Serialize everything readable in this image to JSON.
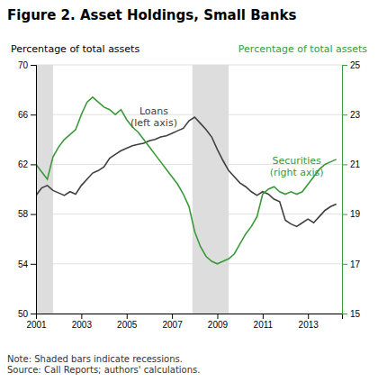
{
  "chart_data": {
    "type": "line",
    "title": "Figure 2. Asset Holdings, Small Banks",
    "ylabel": "Percentage of total assets",
    "y2label": "Percentage of total assets",
    "note": "Note: Shaded bars indicate recessions.\nSource: Call Reports; authors' calculations.",
    "annotations": [
      {
        "text": "Loans\n(left axis)",
        "x": 2006.2,
        "y": 64.8
      },
      {
        "text": "Securities\n(right axis)",
        "x": 2012.5,
        "y": 60.8
      }
    ],
    "recession_bars": [
      [
        2001.0,
        2001.75
      ],
      [
        2007.9,
        2009.5
      ]
    ],
    "xlim": [
      2001.0,
      2014.5
    ],
    "xticks": [
      2001,
      2003,
      2005,
      2007,
      2009,
      2011,
      2013
    ],
    "ylim": [
      50,
      70
    ],
    "yticks": [
      50,
      54,
      58,
      62,
      66,
      70
    ],
    "y2lim": [
      15,
      25
    ],
    "y2ticks": [
      15,
      17,
      19,
      21,
      23,
      25
    ],
    "grid": true,
    "x": [
      2001,
      2001.25,
      2001.5,
      2001.75,
      2002,
      2002.25,
      2002.5,
      2002.75,
      2003,
      2003.25,
      2003.5,
      2003.75,
      2004,
      2004.25,
      2004.5,
      2004.75,
      2005,
      2005.25,
      2005.5,
      2005.75,
      2006,
      2006.25,
      2006.5,
      2006.75,
      2007,
      2007.25,
      2007.5,
      2007.75,
      2008,
      2008.25,
      2008.5,
      2008.75,
      2009,
      2009.25,
      2009.5,
      2009.75,
      2010,
      2010.25,
      2010.5,
      2010.75,
      2011,
      2011.25,
      2011.5,
      2011.75,
      2012,
      2012.25,
      2012.5,
      2012.75,
      2013,
      2013.25,
      2013.5,
      2013.75,
      2014,
      2014.25
    ],
    "series": [
      {
        "color": "#404040",
        "values": [
          59.5,
          60.1,
          60.3,
          59.9,
          59.7,
          59.5,
          59.8,
          59.6,
          60.3,
          60.8,
          61.3,
          61.5,
          61.8,
          62.5,
          62.8,
          63.1,
          63.3,
          63.5,
          63.6,
          63.7,
          63.9,
          64.0,
          64.2,
          64.3,
          64.5,
          64.7,
          64.9,
          65.5,
          65.8,
          65.3,
          64.8,
          64.2,
          63.2,
          62.3,
          61.5,
          61.0,
          60.5,
          60.2,
          59.8,
          59.5,
          59.8,
          59.6,
          59.2,
          59.0,
          57.5,
          57.2,
          57.0,
          57.3,
          57.6,
          57.3,
          57.8,
          58.3,
          58.6,
          58.8
        ]
      },
      {
        "color": "#3a9a3a",
        "axis": "y2",
        "values": [
          21.0,
          20.7,
          20.4,
          21.3,
          21.7,
          22.0,
          22.2,
          22.4,
          23.0,
          23.5,
          23.7,
          23.5,
          23.3,
          23.2,
          23.0,
          23.2,
          22.8,
          22.5,
          22.3,
          22.0,
          21.7,
          21.4,
          21.1,
          20.8,
          20.5,
          20.2,
          19.8,
          19.3,
          18.3,
          17.7,
          17.3,
          17.1,
          17.0,
          17.1,
          17.2,
          17.4,
          17.8,
          18.2,
          18.5,
          18.9,
          19.8,
          20.0,
          20.1,
          19.9,
          19.8,
          19.9,
          19.8,
          19.9,
          20.2,
          20.5,
          20.8,
          21.0,
          21.1,
          21.2
        ]
      }
    ]
  }
}
